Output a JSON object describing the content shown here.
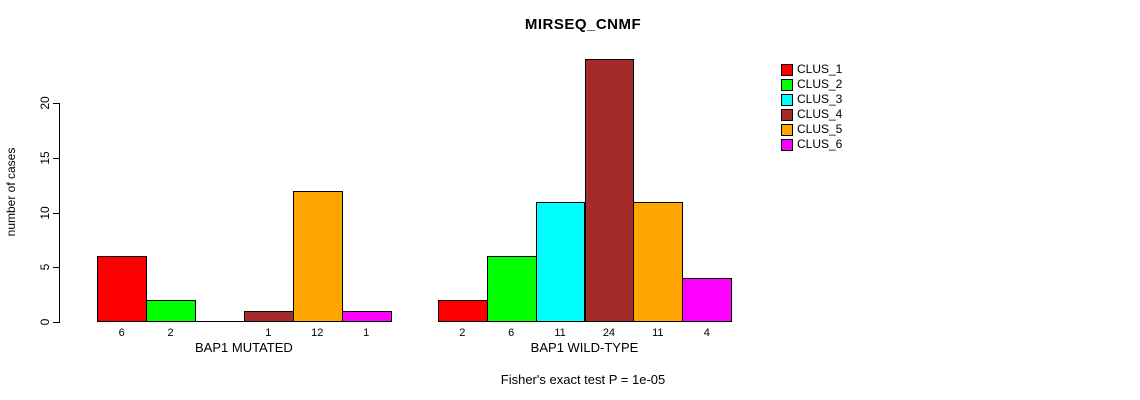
{
  "chart_data": {
    "type": "bar",
    "title": "MIRSEQ_CNMF",
    "ylabel": "number of cases",
    "subtitle": "Fisher's exact test P = 1e-05",
    "yticks": [
      0,
      5,
      10,
      15,
      20
    ],
    "ylim": [
      0,
      24
    ],
    "grid": false,
    "legend_position": "top-right",
    "series_names": [
      "CLUS_1",
      "CLUS_2",
      "CLUS_3",
      "CLUS_4",
      "CLUS_5",
      "CLUS_6"
    ],
    "series_colors": [
      "#FF0000",
      "#00FF00",
      "#00FFFF",
      "#A52A2A",
      "#FFA500",
      "#FF00FF"
    ],
    "groups": [
      {
        "label": "BAP1 MUTATED",
        "values": [
          6,
          2,
          0,
          1,
          12,
          1
        ],
        "bar_labels": [
          "6",
          "2",
          "",
          "1",
          "12",
          "1"
        ]
      },
      {
        "label": "BAP1 WILD-TYPE",
        "values": [
          2,
          6,
          11,
          24,
          11,
          4
        ],
        "bar_labels": [
          "2",
          "6",
          "11",
          "24",
          "11",
          "4"
        ]
      }
    ],
    "legend": {
      "entries": [
        {
          "label": "CLUS_1",
          "color": "#FF0000"
        },
        {
          "label": "CLUS_2",
          "color": "#00FF00"
        },
        {
          "label": "CLUS_3",
          "color": "#00FFFF"
        },
        {
          "label": "CLUS_4",
          "color": "#A52A2A"
        },
        {
          "label": "CLUS_5",
          "color": "#FFA500"
        },
        {
          "label": "CLUS_6",
          "color": "#FF00FF"
        }
      ]
    },
    "colors": {
      "background": "#FFFFFF",
      "axis": "#000000",
      "text": "#000000"
    }
  }
}
